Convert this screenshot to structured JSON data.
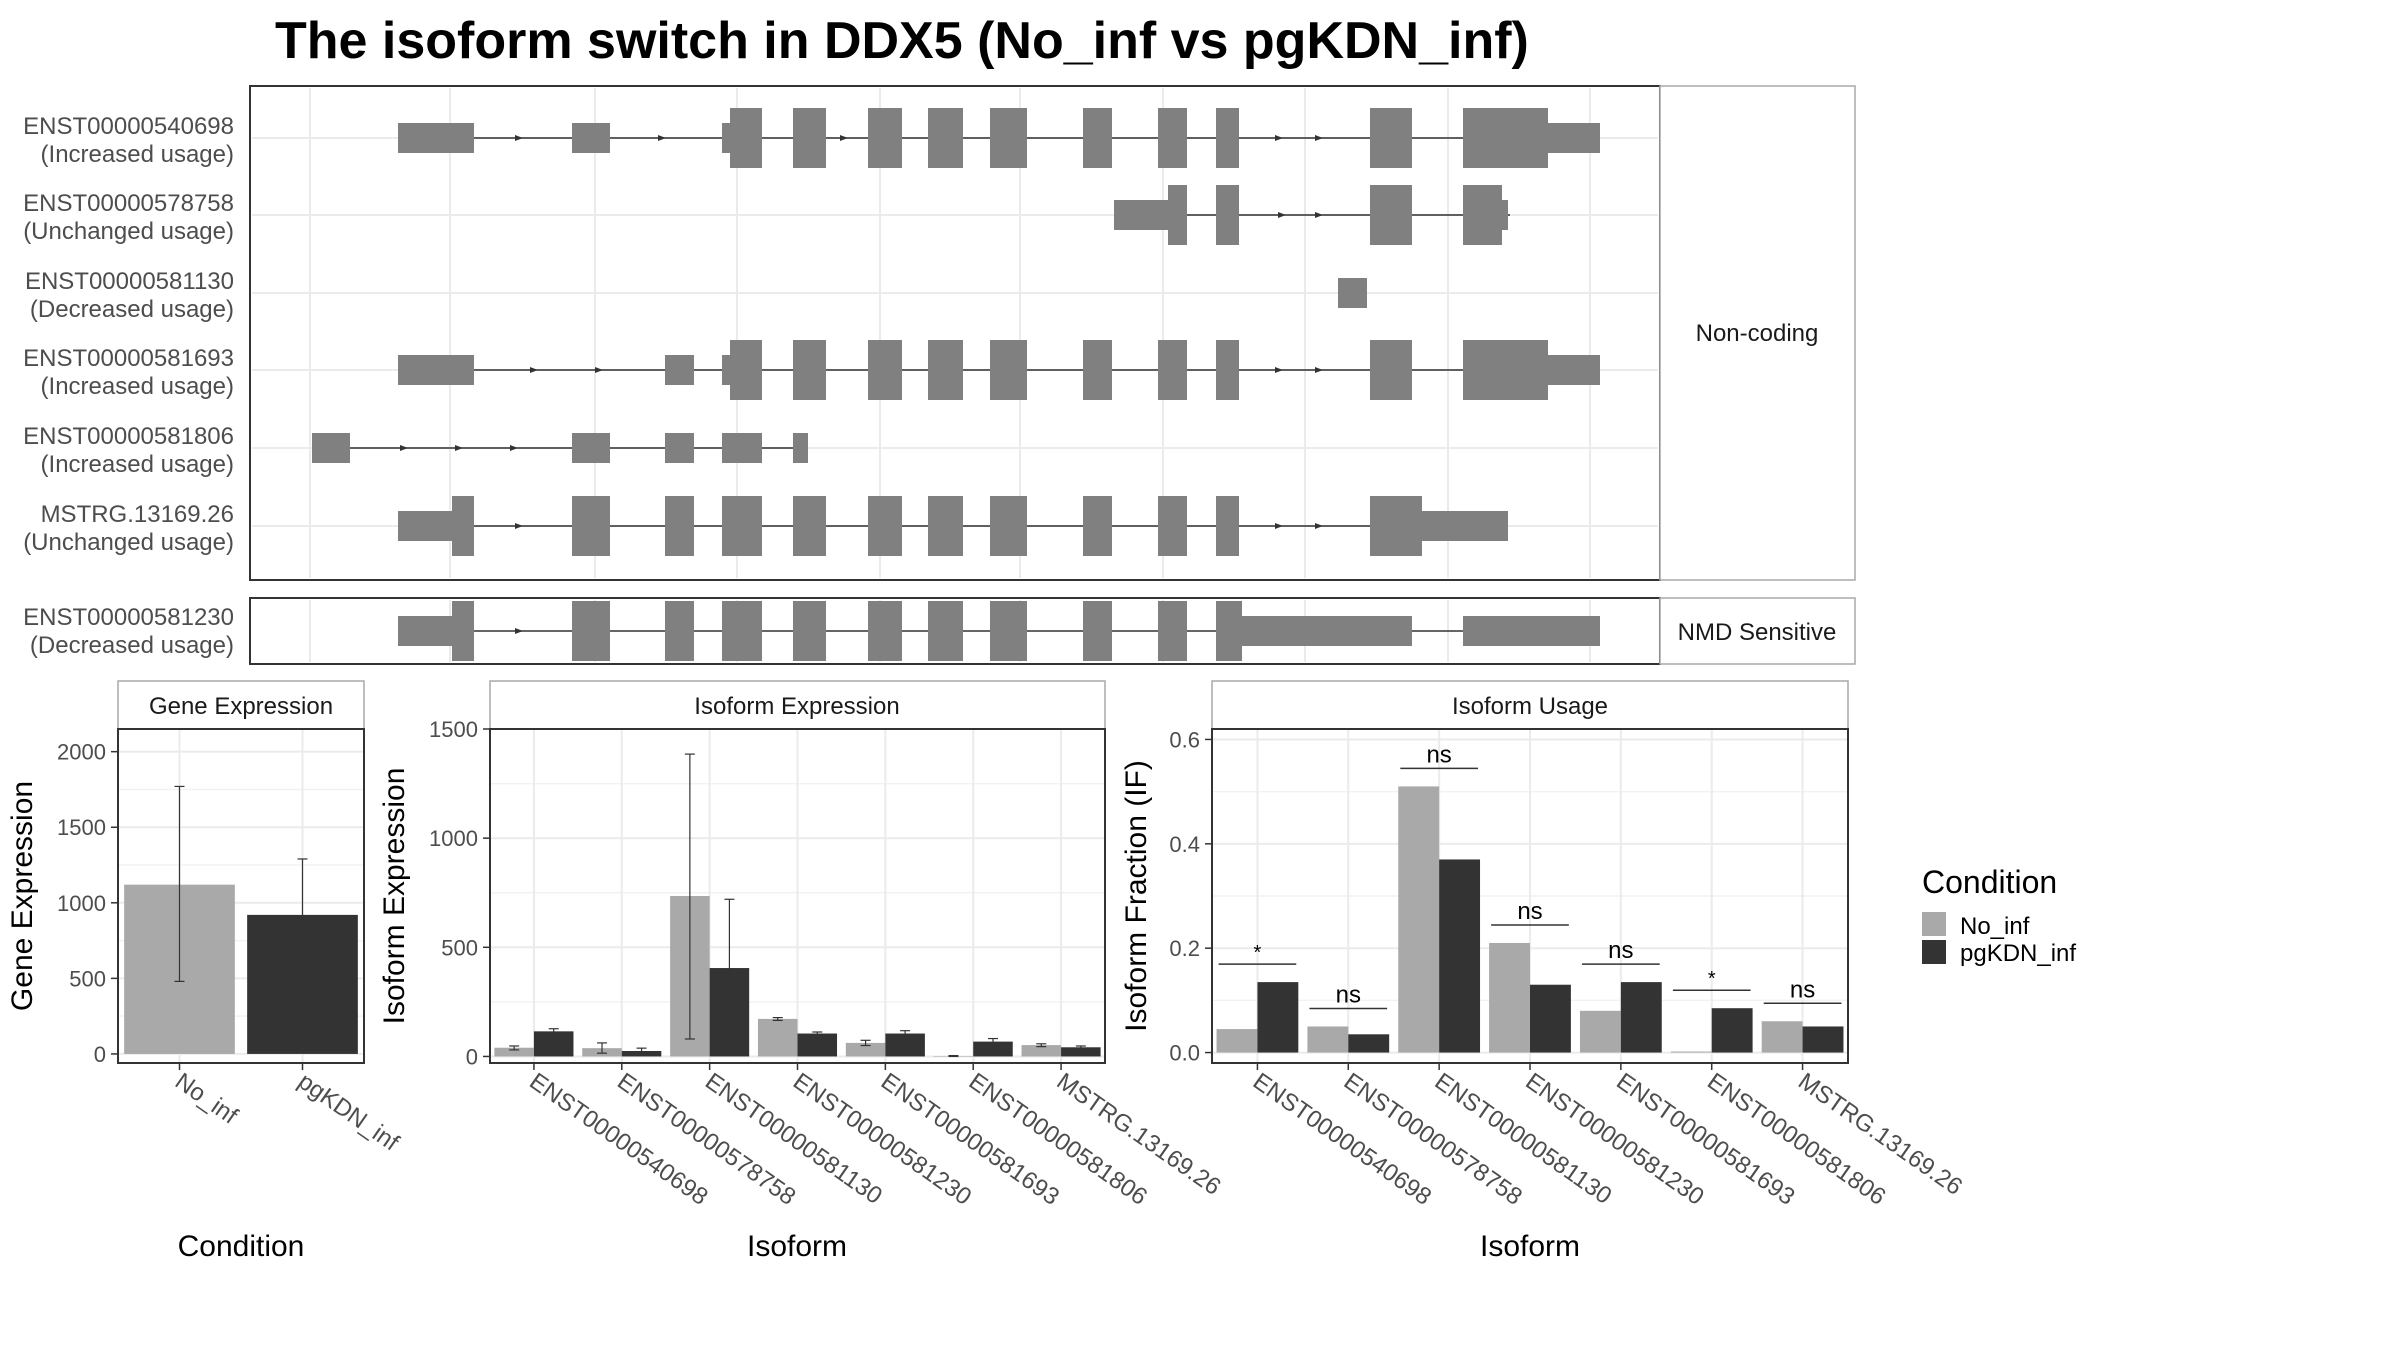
{
  "title": "The isoform switch in DDX5 (No_inf vs pgKDN_inf)",
  "colors": {
    "no_inf": "#a9a9a9",
    "pgkdn_inf": "#333333",
    "exon": "#808080",
    "grid": "#ebebeb",
    "strip_border": "#a9a9a9",
    "panel_border": "#333333"
  },
  "structure": {
    "groups": [
      {
        "strip": "Non-coding",
        "transcripts": [
          {
            "id": "ENST00000540698",
            "usage": "(Increased usage)"
          },
          {
            "id": "ENST00000578758",
            "usage": "(Unchanged usage)"
          },
          {
            "id": "ENST00000581130",
            "usage": "(Decreased usage)"
          },
          {
            "id": "ENST00000581693",
            "usage": "(Increased usage)"
          },
          {
            "id": "ENST00000581806",
            "usage": "(Increased usage)"
          },
          {
            "id": "MSTRG.13169.26",
            "usage": "(Unchanged usage)"
          }
        ]
      },
      {
        "strip": "NMD Sensitive",
        "transcripts": [
          {
            "id": "ENST00000581230",
            "usage": "(Decreased usage)"
          }
        ]
      }
    ]
  },
  "chart_data": [
    {
      "type": "bar",
      "title": "Gene Expression",
      "xlabel": "Condition",
      "ylabel": "Gene Expression",
      "categories": [
        "No_inf",
        "pgKDN_inf"
      ],
      "values": [
        1120,
        920
      ],
      "error_low": [
        480,
        560
      ],
      "error_high": [
        1770,
        1290
      ],
      "ylim": [
        0,
        2150
      ],
      "yticks": [
        0,
        500,
        1000,
        1500,
        2000
      ],
      "grid": true
    },
    {
      "type": "bar",
      "title": "Isoform Expression",
      "xlabel": "Isoform",
      "ylabel": "Isoform Expression",
      "categories": [
        "ENST00000540698",
        "ENST00000578758",
        "ENST00000581130",
        "ENST00000581230",
        "ENST00000581693",
        "ENST00000581806",
        "MSTRG.13169.26"
      ],
      "series": [
        {
          "name": "No_inf",
          "values": [
            40,
            38,
            735,
            172,
            62,
            2,
            52
          ],
          "error_low": [
            30,
            15,
            80,
            165,
            50,
            0,
            45
          ],
          "error_high": [
            48,
            62,
            1385,
            178,
            74,
            4,
            58
          ]
        },
        {
          "name": "pgKDN_inf",
          "values": [
            115,
            25,
            405,
            105,
            105,
            68,
            42
          ],
          "error_low": [
            103,
            12,
            95,
            98,
            92,
            56,
            36
          ],
          "error_high": [
            127,
            38,
            720,
            112,
            118,
            82,
            48
          ]
        }
      ],
      "ylim": [
        -30,
        1500
      ],
      "yticks": [
        0,
        500,
        1000,
        1500
      ],
      "grid": true
    },
    {
      "type": "bar",
      "title": "Isoform Usage",
      "xlabel": "Isoform",
      "ylabel": "Isoform Fraction (IF)",
      "categories": [
        "ENST00000540698",
        "ENST00000578758",
        "ENST00000581130",
        "ENST00000581230",
        "ENST00000581693",
        "ENST00000581806",
        "MSTRG.13169.26"
      ],
      "series": [
        {
          "name": "No_inf",
          "values": [
            0.045,
            0.05,
            0.51,
            0.21,
            0.08,
            0.002,
            0.06
          ]
        },
        {
          "name": "pgKDN_inf",
          "values": [
            0.135,
            0.035,
            0.37,
            0.13,
            0.135,
            0.085,
            0.05
          ]
        }
      ],
      "significance": [
        "*",
        "ns",
        "ns",
        "ns",
        "ns",
        "*",
        "ns"
      ],
      "ylim": [
        -0.02,
        0.62
      ],
      "yticks": [
        0.0,
        0.2,
        0.4,
        0.6
      ],
      "ytick_labels": [
        "0.0",
        "0.2",
        "0.4",
        "0.6"
      ],
      "grid": true
    }
  ],
  "legend": {
    "title": "Condition",
    "items": [
      {
        "label": "No_inf",
        "color": "#a9a9a9"
      },
      {
        "label": "pgKDN_inf",
        "color": "#333333"
      }
    ]
  }
}
